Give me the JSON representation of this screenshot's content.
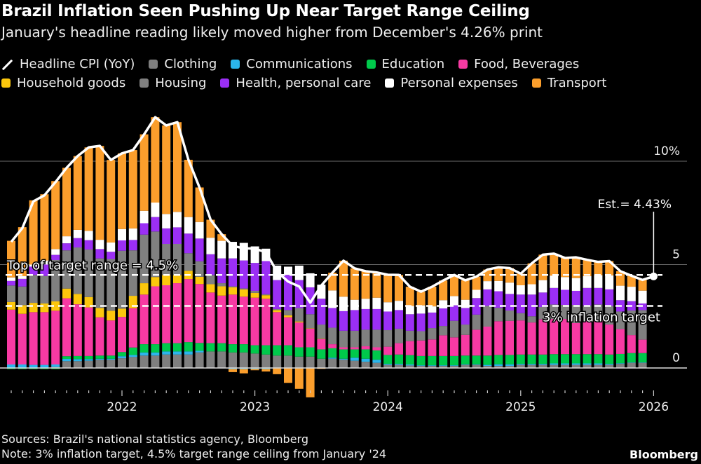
{
  "header": {
    "title": "Brazil Inflation Seen Pushing Up Near Target Range Ceiling",
    "subtitle": "January's headline reading likely moved higher from December's 4.26% print"
  },
  "footer": {
    "sources": "Sources: Brazil's national statistics agency, Bloomberg",
    "note": "Note: 3% inflation target, 4.5% target range ceiling from January '24",
    "brand": "Bloomberg"
  },
  "chart_data": {
    "type": "bar",
    "stacked": true,
    "title": "Brazil Inflation Seen Pushing Up Near Target Range Ceiling",
    "subtitle": "January's headline reading likely moved higher from December's 4.26% print",
    "ylim": [
      -1.5,
      12.5
    ],
    "y_ticks": [
      {
        "value": 0,
        "label": "0"
      },
      {
        "value": 5,
        "label": "5"
      },
      {
        "value": 10,
        "label": "10%"
      }
    ],
    "x_ticks": [
      "2022",
      "2023",
      "2024",
      "2025",
      "2026"
    ],
    "grid": true,
    "legend_position": "top",
    "categories": [
      "2021-03",
      "2021-04",
      "2021-05",
      "2021-06",
      "2021-07",
      "2021-08",
      "2021-09",
      "2021-10",
      "2021-11",
      "2021-12",
      "2022-01",
      "2022-02",
      "2022-03",
      "2022-04",
      "2022-05",
      "2022-06",
      "2022-07",
      "2022-08",
      "2022-09",
      "2022-10",
      "2022-11",
      "2022-12",
      "2023-01",
      "2023-02",
      "2023-03",
      "2023-04",
      "2023-05",
      "2023-06",
      "2023-07",
      "2023-08",
      "2023-09",
      "2023-10",
      "2023-11",
      "2023-12",
      "2024-01",
      "2024-02",
      "2024-03",
      "2024-04",
      "2024-05",
      "2024-06",
      "2024-07",
      "2024-08",
      "2024-09",
      "2024-10",
      "2024-11",
      "2024-12",
      "2025-01",
      "2025-02",
      "2025-03",
      "2025-04",
      "2025-05",
      "2025-06",
      "2025-07",
      "2025-08",
      "2025-09",
      "2025-10",
      "2025-11",
      "2025-12"
    ],
    "headline": {
      "name": "Headline CPI (YoY)",
      "color": "#ffffff",
      "values": [
        6.1,
        6.76,
        8.06,
        8.35,
        8.99,
        9.68,
        10.25,
        10.67,
        10.74,
        10.06,
        10.38,
        10.54,
        11.3,
        12.13,
        11.73,
        11.89,
        10.07,
        8.73,
        7.17,
        6.47,
        5.9,
        5.79,
        5.77,
        5.6,
        4.65,
        4.18,
        3.94,
        3.16,
        3.99,
        4.61,
        5.19,
        4.82,
        4.68,
        4.62,
        4.51,
        4.5,
        3.93,
        3.69,
        3.93,
        4.23,
        4.5,
        4.24,
        4.42,
        4.76,
        4.87,
        4.83,
        4.56,
        5.06,
        5.48,
        5.53,
        5.32,
        5.35,
        5.23,
        5.13,
        5.17,
        4.68,
        4.46,
        4.26
      ]
    },
    "estimate": {
      "date": "2026-01",
      "value": 4.43,
      "label": "Est.= 4.43%"
    },
    "series": [
      {
        "name": "Clothing",
        "color": "#7f7f7f",
        "values": [
          0,
          0,
          0,
          0,
          0.05,
          0.33,
          0.33,
          0.35,
          0.4,
          0.4,
          0.47,
          0.53,
          0.6,
          0.6,
          0.65,
          0.65,
          0.65,
          0.75,
          0.8,
          0.8,
          0.75,
          0.75,
          0.7,
          0.65,
          0.6,
          0.6,
          0.55,
          0.55,
          0.45,
          0.45,
          0.4,
          0.35,
          0.3,
          0.25,
          0.15,
          0.15,
          0.12,
          0.1,
          0.1,
          0.1,
          0.1,
          0.15,
          0.15,
          0.1,
          0.1,
          0.1,
          0.15,
          0.15,
          0.15,
          0.15,
          0.15,
          0.15,
          0.15,
          0.15,
          0.15,
          0.2,
          0.25,
          0.25
        ]
      },
      {
        "name": "Communications",
        "color": "#2bb5ec",
        "values": [
          0.17,
          0.17,
          0.15,
          0.15,
          0.12,
          0.11,
          0.1,
          0.08,
          0.05,
          0.05,
          0.1,
          0.1,
          0.15,
          0.15,
          0.15,
          0.15,
          0.15,
          0.08,
          0,
          0,
          -0.05,
          -0.05,
          -0.05,
          -0.05,
          -0.02,
          0,
          -0.02,
          0,
          0,
          0.05,
          0.05,
          0.15,
          0.15,
          0.15,
          0.05,
          0.05,
          0.05,
          0.03,
          0.03,
          0.03,
          0.03,
          0.03,
          0.03,
          0.05,
          0.08,
          0.08,
          0.05,
          0.05,
          0.05,
          0.07,
          0.07,
          0.07,
          0.07,
          0.07,
          0.05,
          0.03,
          0.02,
          0.02
        ]
      },
      {
        "name": "Education",
        "color": "#00c94b",
        "values": [
          -0.05,
          -0.05,
          -0.05,
          -0.05,
          -0.05,
          0.13,
          0.15,
          0.15,
          0.15,
          0.15,
          0.2,
          0.36,
          0.4,
          0.4,
          0.4,
          0.4,
          0.45,
          0.38,
          0.4,
          0.4,
          0.4,
          0.4,
          0.4,
          0.45,
          0.5,
          0.5,
          0.45,
          0.45,
          0.45,
          0.45,
          0.45,
          0.4,
          0.45,
          0.45,
          0.43,
          0.45,
          0.45,
          0.45,
          0.45,
          0.45,
          0.45,
          0.42,
          0.42,
          0.45,
          0.45,
          0.45,
          0.45,
          0.45,
          0.45,
          0.45,
          0.45,
          0.45,
          0.45,
          0.45,
          0.45,
          0.45,
          0.45,
          0.45
        ]
      },
      {
        "name": "Food, Beverages",
        "color": "#f73aa3",
        "values": [
          2.65,
          2.45,
          2.55,
          2.55,
          2.6,
          2.8,
          2.5,
          2.35,
          1.85,
          1.7,
          1.7,
          1.9,
          2.4,
          2.8,
          2.8,
          2.9,
          3.05,
          2.85,
          2.45,
          2.3,
          2.4,
          2.3,
          2.3,
          2.25,
          1.6,
          1.35,
          1.2,
          0.9,
          0.5,
          0.2,
          0.1,
          0.1,
          0.15,
          0.15,
          0.4,
          0.55,
          0.68,
          0.75,
          0.8,
          1.0,
          0.9,
          1.0,
          1.25,
          1.4,
          1.63,
          1.65,
          1.65,
          1.55,
          1.7,
          1.7,
          1.7,
          1.5,
          1.6,
          1.6,
          1.45,
          1.2,
          0.87,
          0.65
        ]
      },
      {
        "name": "Household goods",
        "color": "#fcc70d",
        "values": [
          0.37,
          0.42,
          0.45,
          0.42,
          0.45,
          0.47,
          0.5,
          0.5,
          0.45,
          0.47,
          0.4,
          0.6,
          0.55,
          0.45,
          0.5,
          0.4,
          0.4,
          0.35,
          0.4,
          0.45,
          0.35,
          0.35,
          0.23,
          0.17,
          0.1,
          0.1,
          0.05,
          0.02,
          0.02,
          0,
          0,
          0,
          0,
          0,
          0,
          0,
          0,
          0,
          0,
          0,
          0,
          0,
          0,
          0,
          0,
          0,
          0,
          0,
          0,
          0,
          0,
          0,
          0,
          0,
          0,
          0,
          0,
          0
        ]
      },
      {
        "name": "Housing",
        "color": "#808080",
        "values": [
          0.8,
          0.9,
          1.35,
          1.33,
          2.0,
          1.85,
          2.25,
          2.3,
          2.4,
          2.5,
          2.8,
          2.2,
          2.35,
          2.2,
          1.5,
          1.5,
          0.85,
          0.75,
          0.45,
          0.15,
          0.05,
          0.05,
          0.1,
          0.05,
          0.05,
          0.25,
          0.65,
          0.68,
          0.68,
          0.8,
          0.8,
          0.8,
          0.8,
          0.85,
          0.8,
          0.7,
          0.5,
          0.45,
          0.55,
          0.45,
          0.8,
          0.5,
          0.73,
          1.0,
          0.65,
          0.5,
          0.35,
          0.3,
          0.6,
          0.7,
          0.68,
          0.88,
          0.75,
          0.8,
          0.9,
          0.85,
          1.19,
          1.43
        ]
      },
      {
        "name": "Health, personal care",
        "color": "#9b2ff5",
        "values": [
          0.22,
          0.37,
          0.4,
          0.55,
          0.25,
          0.34,
          0.45,
          0.45,
          0.45,
          0.35,
          0.5,
          0.5,
          0.55,
          0.7,
          0.75,
          0.8,
          0.95,
          1.1,
          1.0,
          1.2,
          1.35,
          1.35,
          1.35,
          1.6,
          1.4,
          1.7,
          1.35,
          1.3,
          1.25,
          0.95,
          0.95,
          1.0,
          1.0,
          1.0,
          0.9,
          0.9,
          0.8,
          0.85,
          0.75,
          0.85,
          0.75,
          0.8,
          0.8,
          0.8,
          0.8,
          0.8,
          0.9,
          1.05,
          0.7,
          0.8,
          0.73,
          0.68,
          0.85,
          0.8,
          0.8,
          0.55,
          0.45,
          0.32
        ]
      },
      {
        "name": "Personal expenses",
        "color": "#ffffff",
        "values": [
          0.17,
          0.13,
          0.1,
          0.2,
          0.28,
          0.34,
          0.4,
          0.45,
          0.45,
          0.45,
          0.55,
          0.56,
          0.6,
          0.7,
          0.7,
          0.75,
          0.8,
          0.8,
          0.8,
          0.85,
          0.8,
          0.85,
          0.8,
          0.6,
          0.7,
          0.4,
          0.7,
          0.68,
          0.68,
          0.85,
          0.7,
          0.5,
          0.5,
          0.55,
          0.45,
          0.45,
          0.4,
          0.4,
          0.3,
          0.4,
          0.45,
          0.4,
          0.4,
          0.4,
          0.5,
          0.55,
          0.45,
          0.5,
          0.6,
          0.6,
          0.62,
          0.62,
          0.57,
          0.62,
          0.68,
          0.7,
          0.7,
          0.62
        ]
      },
      {
        "name": "Transport",
        "color": "#fb9e2c",
        "values": [
          1.77,
          2.37,
          3.11,
          3.2,
          3.29,
          3.31,
          3.57,
          4.04,
          4.54,
          3.99,
          3.66,
          3.79,
          3.7,
          4.13,
          4.28,
          4.34,
          2.77,
          1.67,
          0.87,
          0.32,
          -0.15,
          -0.21,
          -0.06,
          -0.12,
          -0.28,
          -0.72,
          -0.99,
          -1.42,
          -0.04,
          0.86,
          1.74,
          1.52,
          1.33,
          1.22,
          1.33,
          1.25,
          0.93,
          0.66,
          0.95,
          0.95,
          1.02,
          0.94,
          0.64,
          0.56,
          0.66,
          0.7,
          0.56,
          1.01,
          1.23,
          1.06,
          0.92,
          1.0,
          0.79,
          0.64,
          0.69,
          0.7,
          0.53,
          0.52
        ]
      }
    ],
    "reference_lines": [
      {
        "value": 4.5,
        "label": "Top of target range = 4.5%"
      },
      {
        "value": 3,
        "label": "3% inflation target"
      }
    ]
  }
}
